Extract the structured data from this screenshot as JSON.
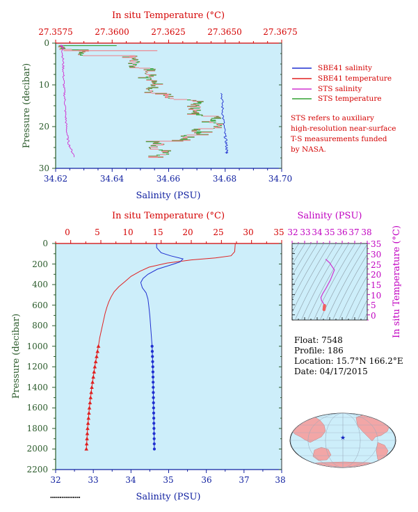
{
  "colors": {
    "panel_bg": "#cdeefa",
    "sbe_salinity": "#1f2fd0",
    "sbe_temperature": "#e02020",
    "sts_salinity": "#d030d0",
    "sts_temperature": "#30a030",
    "sts_temperature_pink": "#f07f86",
    "axis_red": "#d40000",
    "axis_blue": "#1020a0",
    "axis_green": "#2a5a2a",
    "axis_magenta": "#c000c0"
  },
  "chart_data": [
    {
      "id": "near-surface",
      "type": "line",
      "title": "",
      "top_axis": {
        "label": "In situ Temperature (°C)",
        "range": [
          27.3575,
          27.3675
        ],
        "ticks": [
          "27.3575",
          "27.3600",
          "27.3625",
          "27.3650",
          "27.3675"
        ]
      },
      "bottom_axis": {
        "label": "Salinity (PSU)",
        "range": [
          34.62,
          34.7
        ],
        "ticks": [
          "34.62",
          "34.64",
          "34.66",
          "34.68",
          "34.70"
        ]
      },
      "left_axis": {
        "label": "Pressure (decibar)",
        "range": [
          0,
          30
        ],
        "inverted": true,
        "ticks": [
          "0",
          "10",
          "20",
          "30"
        ]
      },
      "legend": {
        "placement": "right",
        "entries": [
          {
            "name": "SBE41 salinity",
            "color": "#1f2fd0"
          },
          {
            "name": "SBE41 temperature",
            "color": "#e02020"
          },
          {
            "name": "STS salinity",
            "color": "#d030d0"
          },
          {
            "name": "STS temperature",
            "color": "#30a030"
          }
        ]
      },
      "note": [
        "STS refers to auxiliary",
        "high-resolution near-surface",
        "T-S measurements funded",
        "by NASA."
      ],
      "series": [
        {
          "name": "SBE41 salinity",
          "axis": "salinity",
          "values": [
            [
              34.6788,
              12.0
            ],
            [
              34.679,
              15.0
            ],
            [
              34.6793,
              18.0
            ],
            [
              34.6798,
              21.5
            ],
            [
              34.6803,
              23.5
            ],
            [
              34.6806,
              25.5
            ],
            [
              34.6806,
              26.5
            ]
          ]
        },
        {
          "name": "STS salinity",
          "axis": "salinity",
          "values": [
            [
              34.622,
              0.5
            ],
            [
              34.6225,
              1.0
            ],
            [
              34.6224,
              2.0
            ],
            [
              34.6226,
              4.0
            ],
            [
              34.6227,
              6.0
            ],
            [
              34.6228,
              8.0
            ],
            [
              34.6229,
              10.0
            ],
            [
              34.6231,
              12.0
            ],
            [
              34.6233,
              14.0
            ],
            [
              34.6234,
              16.0
            ],
            [
              34.6236,
              18.0
            ],
            [
              34.6238,
              20.0
            ],
            [
              34.6241,
              22.0
            ],
            [
              34.6246,
              24.0
            ],
            [
              34.6258,
              26.0
            ],
            [
              34.627,
              27.5
            ]
          ]
        },
        {
          "name": "STS temperature",
          "axis": "temperature",
          "steps": [
            [
              0.5,
              27.35785
            ],
            [
              1.5,
              27.35872
            ],
            [
              3.0,
              27.36097
            ],
            [
              6.0,
              27.36172
            ],
            [
              9.0,
              27.36176
            ],
            [
              12.0,
              27.36248
            ],
            [
              13.5,
              27.36368
            ],
            [
              16.0,
              27.36375
            ],
            [
              17.5,
              27.36458
            ],
            [
              19.0,
              27.3647
            ],
            [
              20.5,
              27.36378
            ],
            [
              22.0,
              27.36326
            ],
            [
              23.5,
              27.36206
            ],
            [
              24.5,
              27.3618
            ],
            [
              25.5,
              27.36234
            ],
            [
              26.5,
              27.36215
            ],
            [
              27.5,
              27.36198
            ]
          ]
        }
      ]
    },
    {
      "id": "full-profile",
      "type": "line",
      "title": "",
      "top_axis": {
        "label": "In situ Temperature (°C)",
        "range": [
          -2.5,
          35
        ],
        "ticks": [
          "0",
          "5",
          "10",
          "15",
          "20",
          "25",
          "30",
          "35"
        ]
      },
      "bottom_axis": {
        "label": "Salinity (PSU)",
        "range": [
          32,
          38
        ],
        "ticks": [
          "32",
          "33",
          "34",
          "35",
          "36",
          "37",
          "38"
        ]
      },
      "left_axis": {
        "label": "Pressure (decibar)",
        "range": [
          0,
          2200
        ],
        "inverted": true,
        "ticks": [
          "0",
          "200",
          "400",
          "600",
          "800",
          "1000",
          "1200",
          "1400",
          "1600",
          "1800",
          "2000",
          "2200"
        ]
      },
      "series": [
        {
          "name": "SBE41 temperature",
          "axis": "temperature",
          "values": [
            [
              27.3,
              0
            ],
            [
              27.2,
              80
            ],
            [
              26.6,
              120
            ],
            [
              24.0,
              140
            ],
            [
              20.0,
              160
            ],
            [
              16.0,
              190
            ],
            [
              13.0,
              230
            ],
            [
              11.5,
              270
            ],
            [
              10.0,
              320
            ],
            [
              9.0,
              370
            ],
            [
              8.0,
              420
            ],
            [
              7.2,
              470
            ],
            [
              6.7,
              520
            ],
            [
              6.3,
              570
            ],
            [
              6.0,
              620
            ],
            [
              5.7,
              680
            ],
            [
              5.4,
              760
            ],
            [
              5.1,
              840
            ],
            [
              4.8,
              920
            ],
            [
              4.6,
              1000
            ],
            [
              4.0,
              1200
            ],
            [
              3.5,
              1400
            ],
            [
              3.1,
              1600
            ],
            [
              2.8,
              1800
            ],
            [
              2.6,
              2000
            ]
          ]
        },
        {
          "name": "SBE41 salinity",
          "axis": "salinity",
          "values": [
            [
              34.68,
              0
            ],
            [
              34.68,
              40
            ],
            [
              34.8,
              90
            ],
            [
              35.05,
              120
            ],
            [
              35.38,
              150
            ],
            [
              35.3,
              180
            ],
            [
              35.05,
              210
            ],
            [
              34.7,
              250
            ],
            [
              34.45,
              300
            ],
            [
              34.32,
              340
            ],
            [
              34.26,
              380
            ],
            [
              34.3,
              430
            ],
            [
              34.4,
              480
            ],
            [
              34.45,
              540
            ],
            [
              34.47,
              600
            ],
            [
              34.5,
              700
            ],
            [
              34.52,
              800
            ],
            [
              34.54,
              900
            ],
            [
              34.56,
              1000
            ],
            [
              34.58,
              1200
            ],
            [
              34.59,
              1400
            ],
            [
              34.6,
              1600
            ],
            [
              34.61,
              1800
            ],
            [
              34.62,
              2000
            ]
          ]
        },
        {
          "name": "temperature-markers",
          "axis": "temperature",
          "marker": "triangle",
          "pressures": [
            1000,
            1050,
            1100,
            1150,
            1200,
            1250,
            1300,
            1350,
            1400,
            1450,
            1500,
            1550,
            1600,
            1650,
            1700,
            1750,
            1800,
            1850,
            1900,
            1950,
            2000
          ]
        },
        {
          "name": "salinity-markers",
          "axis": "salinity",
          "marker": "circle",
          "pressures": [
            1000,
            1050,
            1100,
            1150,
            1200,
            1250,
            1300,
            1350,
            1400,
            1450,
            1500,
            1550,
            1600,
            1650,
            1700,
            1750,
            1800,
            1850,
            1900,
            1950,
            2000
          ]
        }
      ]
    },
    {
      "id": "ts-diagram",
      "type": "line",
      "title": "",
      "top_axis": {
        "label": "Salinity (PSU)",
        "range": [
          32,
          38
        ],
        "ticks": [
          "32",
          "33",
          "34",
          "35",
          "36",
          "37",
          "38"
        ]
      },
      "right_axis": {
        "label": "In situ Temperature (°C)",
        "range": [
          -2.5,
          35
        ],
        "ticks": [
          "0",
          "5",
          "10",
          "15",
          "20",
          "25",
          "30",
          "35"
        ]
      },
      "series": [
        {
          "name": "T-S curve",
          "values": [
            [
              34.68,
              27.3
            ],
            [
              35.0,
              25.5
            ],
            [
              35.38,
              22.0
            ],
            [
              35.05,
              17.0
            ],
            [
              34.7,
              13.0
            ],
            [
              34.45,
              10.5
            ],
            [
              34.3,
              8.5
            ],
            [
              34.35,
              7.0
            ],
            [
              34.45,
              6.2
            ],
            [
              34.5,
              5.6
            ],
            [
              34.55,
              4.8
            ],
            [
              34.6,
              3.5
            ],
            [
              34.62,
              2.6
            ]
          ]
        }
      ]
    }
  ],
  "float_info": {
    "float": "Float:  7548",
    "profile": "Profile:  186",
    "location": "Location:  15.7°N  166.2°E",
    "date": "Date:  04/17/2015"
  },
  "map": {
    "marker_lat": 15.7,
    "marker_lon": 166.2,
    "marker_color": "#1020c0",
    "land_color": "#f2a6a6",
    "ocean_color": "#cdeefa"
  }
}
